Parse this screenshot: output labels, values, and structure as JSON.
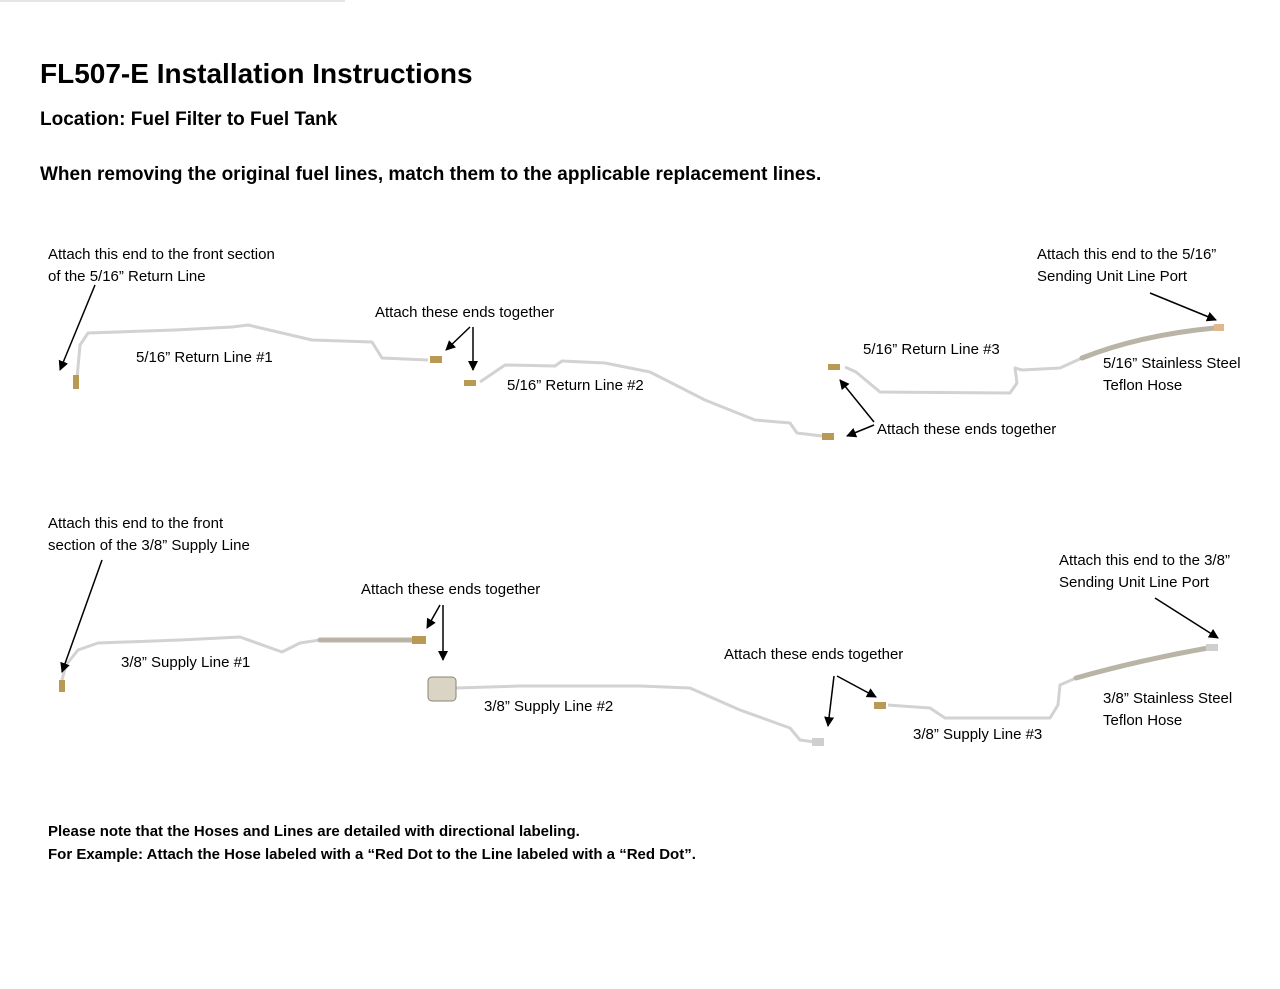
{
  "title": "FL507-E Installation Instructions",
  "location": "Location: Fuel Filter to Fuel Tank",
  "intro": "When removing the original fuel lines, match them to the applicable replacement lines.",
  "return_section": {
    "front_note": [
      "Attach this end to the front section",
      "of the 5/16” Return Line"
    ],
    "line1": "5/16” Return Line #1",
    "join1": "Attach these ends together",
    "line2": "5/16” Return Line #2",
    "line3": "5/16” Return Line #3",
    "join2": "Attach these ends together",
    "tank_note": [
      "Attach this end to the 5/16”",
      "Sending Unit Line Port"
    ],
    "hose": [
      "5/16” Stainless Steel",
      "Teflon Hose"
    ]
  },
  "supply_section": {
    "front_note": [
      "Attach this end to the front",
      "section of the 3/8” Supply Line"
    ],
    "line1": "3/8” Supply Line #1",
    "join1": "Attach these ends together",
    "line2": "3/8” Supply Line #2",
    "join2": "Attach these ends together",
    "line3": "3/8” Supply Line #3",
    "tank_note": [
      "Attach this end to the 3/8”",
      "Sending Unit Line Port"
    ],
    "hose": [
      "3/8” Stainless Steel",
      "Teflon Hose"
    ]
  },
  "footer": [
    "Please note that the Hoses and Lines are detailed with directional labeling.",
    "For Example: Attach the Hose labeled with a “Red Dot to the Line labeled with a “Red Dot”."
  ],
  "colors": {
    "tube": "#d4d4d4",
    "hose": "#b9b4a6",
    "fitting": "#b89a55",
    "arrow": "#000000"
  }
}
